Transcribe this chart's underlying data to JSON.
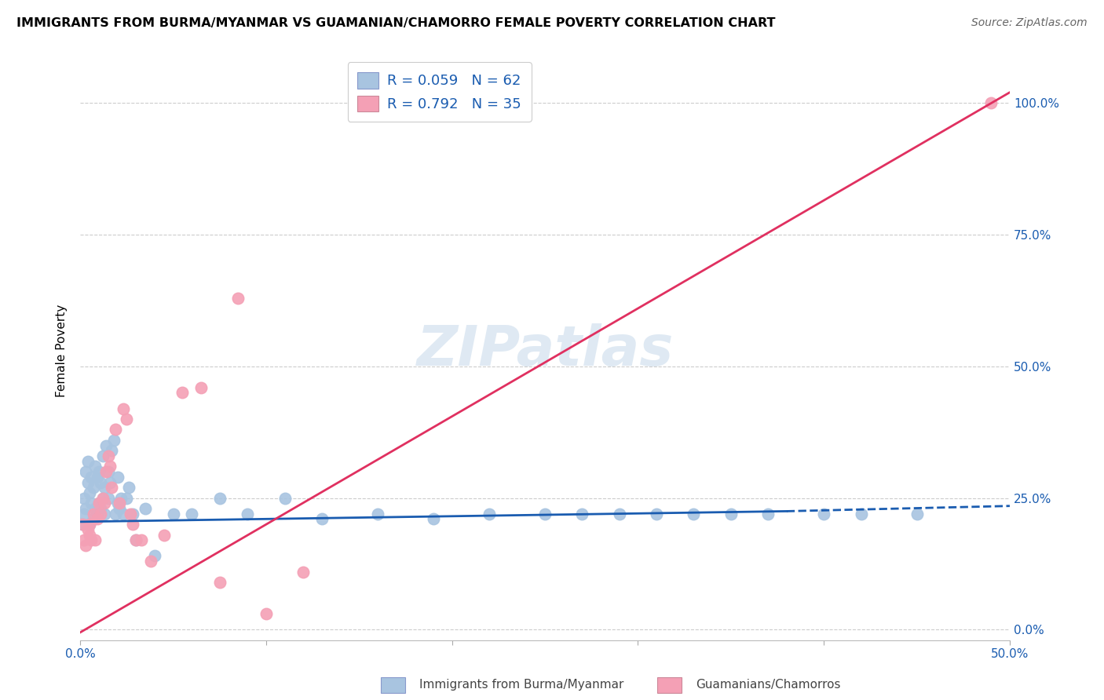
{
  "title": "IMMIGRANTS FROM BURMA/MYANMAR VS GUAMANIAN/CHAMORRO FEMALE POVERTY CORRELATION CHART",
  "source": "Source: ZipAtlas.com",
  "ylabel": "Female Poverty",
  "xlim": [
    0.0,
    0.5
  ],
  "ylim": [
    -0.02,
    1.08
  ],
  "xticks": [
    0.0,
    0.1,
    0.2,
    0.3,
    0.4,
    0.5
  ],
  "xtick_labels": [
    "0.0%",
    "",
    "",
    "",
    "",
    "50.0%"
  ],
  "yticks": [
    0.0,
    0.25,
    0.5,
    0.75,
    1.0
  ],
  "ytick_labels": [
    "0.0%",
    "25.0%",
    "50.0%",
    "75.0%",
    "100.0%"
  ],
  "blue_R": 0.059,
  "blue_N": 62,
  "pink_R": 0.792,
  "pink_N": 35,
  "blue_color": "#a8c4e0",
  "pink_color": "#f4a0b5",
  "blue_line_color": "#1a5cb0",
  "pink_line_color": "#e03060",
  "legend_text_color": "#1a5cb0",
  "watermark": "ZIPatlas",
  "blue_line_x0": 0.0,
  "blue_line_y0": 0.205,
  "blue_line_x1": 0.38,
  "blue_line_y1": 0.225,
  "blue_line_dash_x0": 0.38,
  "blue_line_dash_y0": 0.225,
  "blue_line_dash_x1": 0.5,
  "blue_line_dash_y1": 0.235,
  "pink_line_x0": 0.0,
  "pink_line_y0": -0.005,
  "pink_line_x1": 0.5,
  "pink_line_y1": 1.02,
  "blue_x": [
    0.001,
    0.002,
    0.002,
    0.003,
    0.003,
    0.004,
    0.004,
    0.005,
    0.005,
    0.006,
    0.006,
    0.007,
    0.007,
    0.008,
    0.008,
    0.009,
    0.009,
    0.01,
    0.01,
    0.011,
    0.011,
    0.012,
    0.012,
    0.013,
    0.013,
    0.014,
    0.015,
    0.015,
    0.016,
    0.017,
    0.018,
    0.019,
    0.02,
    0.02,
    0.021,
    0.022,
    0.023,
    0.025,
    0.026,
    0.028,
    0.03,
    0.035,
    0.04,
    0.05,
    0.06,
    0.075,
    0.09,
    0.11,
    0.13,
    0.16,
    0.19,
    0.22,
    0.25,
    0.27,
    0.29,
    0.31,
    0.33,
    0.35,
    0.37,
    0.4,
    0.42,
    0.45
  ],
  "blue_y": [
    0.2,
    0.22,
    0.25,
    0.3,
    0.23,
    0.28,
    0.32,
    0.2,
    0.26,
    0.24,
    0.29,
    0.21,
    0.27,
    0.23,
    0.31,
    0.22,
    0.29,
    0.24,
    0.3,
    0.23,
    0.28,
    0.25,
    0.33,
    0.22,
    0.27,
    0.35,
    0.25,
    0.3,
    0.28,
    0.34,
    0.36,
    0.22,
    0.24,
    0.29,
    0.23,
    0.25,
    0.22,
    0.25,
    0.27,
    0.22,
    0.17,
    0.23,
    0.14,
    0.22,
    0.22,
    0.25,
    0.22,
    0.25,
    0.21,
    0.22,
    0.21,
    0.22,
    0.22,
    0.22,
    0.22,
    0.22,
    0.22,
    0.22,
    0.22,
    0.22,
    0.22,
    0.22
  ],
  "pink_x": [
    0.001,
    0.002,
    0.003,
    0.004,
    0.005,
    0.005,
    0.006,
    0.007,
    0.008,
    0.009,
    0.01,
    0.011,
    0.012,
    0.013,
    0.014,
    0.015,
    0.016,
    0.017,
    0.019,
    0.021,
    0.023,
    0.025,
    0.027,
    0.028,
    0.03,
    0.033,
    0.038,
    0.045,
    0.055,
    0.065,
    0.075,
    0.085,
    0.1,
    0.12,
    0.49
  ],
  "pink_y": [
    0.2,
    0.17,
    0.16,
    0.19,
    0.2,
    0.18,
    0.17,
    0.22,
    0.17,
    0.21,
    0.24,
    0.22,
    0.25,
    0.24,
    0.3,
    0.33,
    0.31,
    0.27,
    0.38,
    0.24,
    0.42,
    0.4,
    0.22,
    0.2,
    0.17,
    0.17,
    0.13,
    0.18,
    0.45,
    0.46,
    0.09,
    0.63,
    0.03,
    0.11,
    1.0
  ]
}
